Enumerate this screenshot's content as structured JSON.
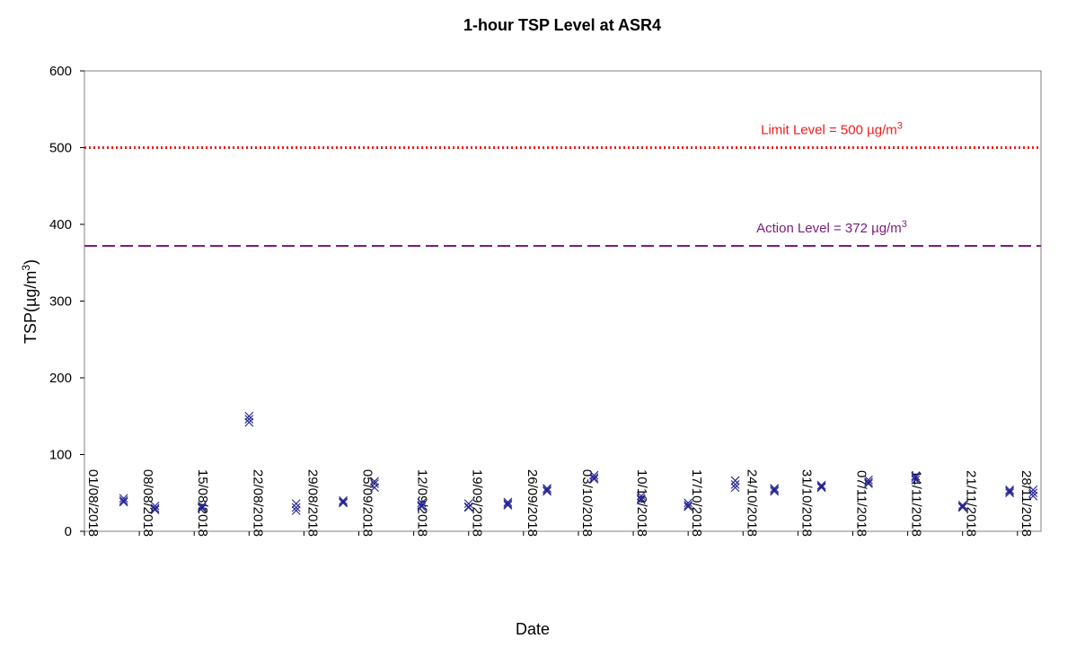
{
  "chart_data": {
    "type": "scatter",
    "title": "1-hour TSP Level at ASR4",
    "xlabel": "Date",
    "ylabel_main": "TSP(",
    "ylabel_unit": "µg/m",
    "ylabel_sup": "3",
    "ylabel_close": ")",
    "ylim": [
      0,
      600
    ],
    "yticks": [
      "0",
      "100",
      "200",
      "300",
      "400",
      "500",
      "600"
    ],
    "xlim": [
      "2018-08-01",
      "2018-11-30"
    ],
    "xticks": [
      "01/08/2018",
      "08/08/2018",
      "15/08/2018",
      "22/08/2018",
      "29/08/2018",
      "05/09/2018",
      "12/09/2018",
      "19/09/2018",
      "26/09/2018",
      "03/10/2018",
      "10/10/2018",
      "17/10/2018",
      "24/10/2018",
      "31/10/2018",
      "07/11/2018",
      "14/11/2018",
      "21/11/2018",
      "28/11/2018"
    ],
    "grid": false,
    "marker": "x",
    "marker_color": "#1f1f8f",
    "reference_lines": [
      {
        "name": "Limit Level",
        "value": 500,
        "label_prefix": "Limit Level = 500 ",
        "label_unit": "µg/m",
        "label_sup": "3",
        "color": "#ee1c1c",
        "style": "dotted"
      },
      {
        "name": "Action Level",
        "value": 372,
        "label_prefix": "Action Level = 372 ",
        "label_unit": "µg/m",
        "label_sup": "3",
        "color": "#7b1c7b",
        "style": "dashed"
      }
    ],
    "series": [
      {
        "x": [
          "2018-08-06",
          "2018-08-06",
          "2018-08-06",
          "2018-08-10",
          "2018-08-10",
          "2018-08-10",
          "2018-08-16",
          "2018-08-16",
          "2018-08-16",
          "2018-08-22",
          "2018-08-22",
          "2018-08-22",
          "2018-08-28",
          "2018-08-28",
          "2018-08-28",
          "2018-09-03",
          "2018-09-03",
          "2018-09-03",
          "2018-09-07",
          "2018-09-07",
          "2018-09-07",
          "2018-09-13",
          "2018-09-13",
          "2018-09-13",
          "2018-09-19",
          "2018-09-19",
          "2018-09-19",
          "2018-09-24",
          "2018-09-24",
          "2018-09-24",
          "2018-09-29",
          "2018-09-29",
          "2018-09-29",
          "2018-10-05",
          "2018-10-05",
          "2018-10-05",
          "2018-10-11",
          "2018-10-11",
          "2018-10-11",
          "2018-10-17",
          "2018-10-17",
          "2018-10-17",
          "2018-10-23",
          "2018-10-23",
          "2018-10-23",
          "2018-10-28",
          "2018-10-28",
          "2018-10-28",
          "2018-11-03",
          "2018-11-03",
          "2018-11-03",
          "2018-11-09",
          "2018-11-09",
          "2018-11-09",
          "2018-11-15",
          "2018-11-15",
          "2018-11-15",
          "2018-11-21",
          "2018-11-21",
          "2018-11-21",
          "2018-11-27",
          "2018-11-27",
          "2018-11-27",
          "2018-11-30",
          "2018-11-30",
          "2018-11-30"
        ],
        "y": [
          43,
          40,
          38,
          33,
          30,
          28,
          33,
          31,
          30,
          150,
          146,
          142,
          36,
          31,
          27,
          40,
          38,
          37,
          65,
          62,
          57,
          37,
          34,
          32,
          36,
          32,
          31,
          38,
          36,
          34,
          56,
          54,
          52,
          73,
          70,
          68,
          46,
          43,
          41,
          37,
          34,
          32,
          66,
          61,
          57,
          56,
          54,
          52,
          60,
          58,
          57,
          67,
          64,
          62,
          72,
          70,
          67,
          34,
          32,
          31,
          54,
          52,
          50,
          54,
          50,
          46
        ]
      }
    ]
  }
}
